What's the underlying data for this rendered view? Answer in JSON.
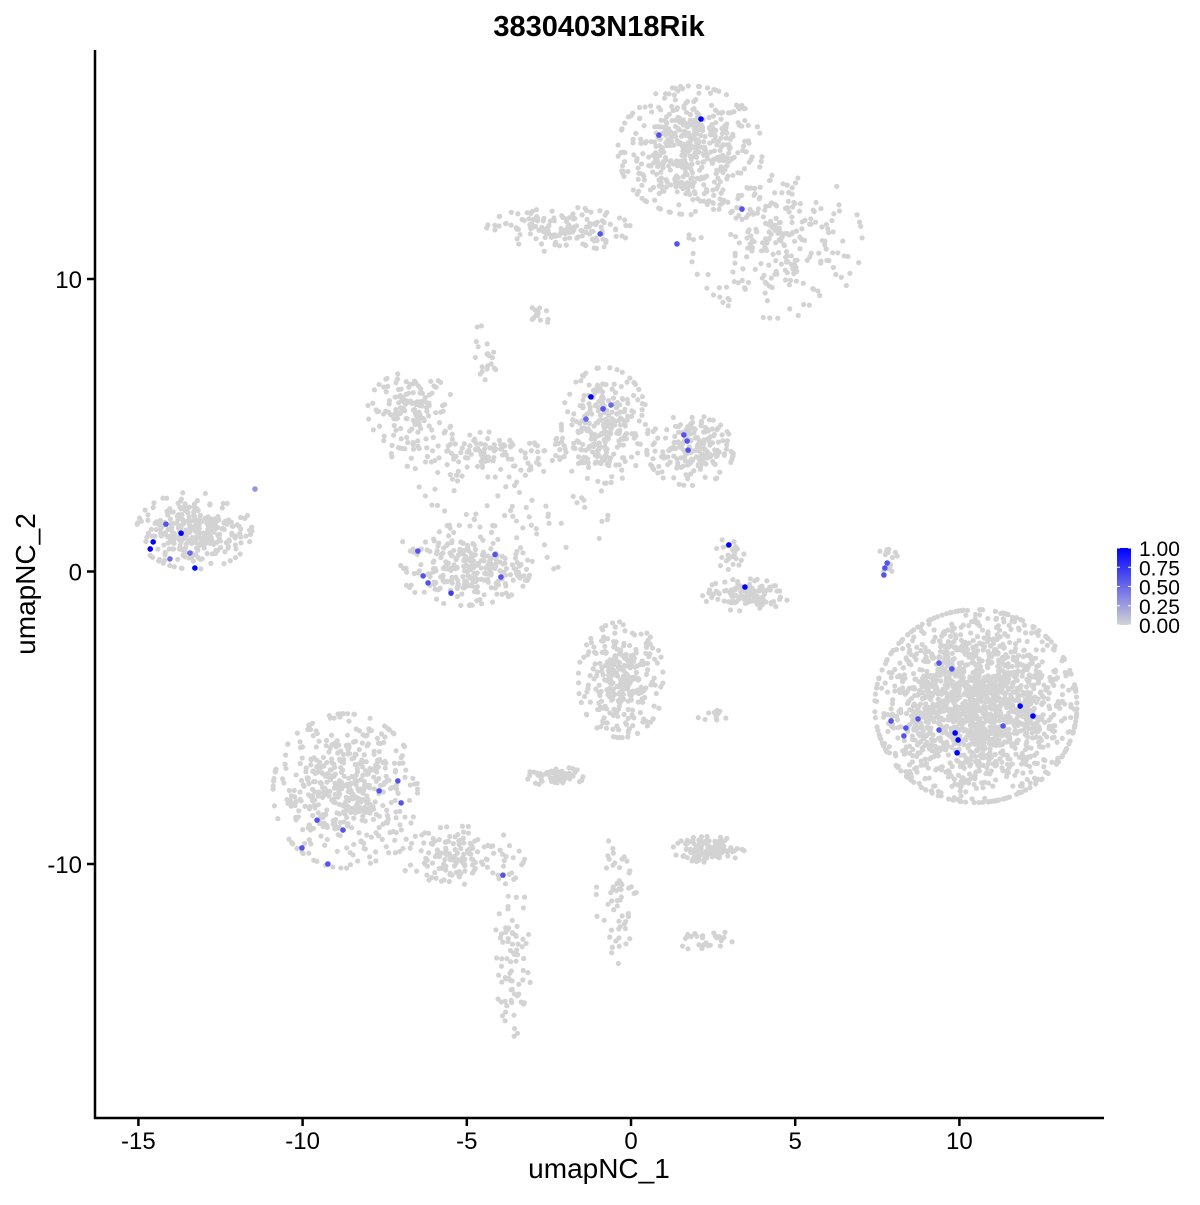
{
  "chart_data": {
    "type": "scatter",
    "title": "3830403N18Rik",
    "xlabel": "umapNC_1",
    "ylabel": "umapNC_2",
    "xlim": [
      -16.4,
      14.2
    ],
    "ylim": [
      -18.5,
      17.6
    ],
    "x_ticks": [
      -15,
      -10,
      -5,
      0,
      5,
      10
    ],
    "x_tick_labels": [
      "-15",
      "-10",
      "-5",
      "0",
      "5",
      "10"
    ],
    "y_ticks": [
      -10,
      0,
      10
    ],
    "y_tick_labels": [
      "-10",
      "0",
      "10"
    ],
    "grid": false,
    "color_scale": {
      "low": "#D3D3D3",
      "high": "#0000FF",
      "range": [
        0,
        1
      ],
      "ticks": [
        1.0,
        0.75,
        0.5,
        0.25,
        0.0
      ],
      "tick_labels": [
        "1.00",
        "0.75",
        "0.50",
        "0.25",
        "0.00"
      ],
      "legend_position": "right"
    },
    "unexpressed_regions_value": 0,
    "unexpressed_regions": [
      {
        "center": [
          1.8,
          14.4
        ],
        "sd": [
          1.0,
          1.0
        ],
        "n": 500
      },
      {
        "center": [
          4.4,
          11.3
        ],
        "sd": [
          1.2,
          1.2
        ],
        "n": 250
      },
      {
        "center": [
          -2.2,
          11.7
        ],
        "sd": [
          1.0,
          0.35
        ],
        "n": 150
      },
      {
        "center": [
          -2.8,
          8.8
        ],
        "sd": [
          0.2,
          0.2
        ],
        "n": 15
      },
      {
        "center": [
          -6.7,
          5.5
        ],
        "sd": [
          0.6,
          0.6
        ],
        "n": 150
      },
      {
        "center": [
          -4.0,
          4.0
        ],
        "sd": [
          1.5,
          0.35
        ],
        "n": 150
      },
      {
        "center": [
          -0.8,
          5.0
        ],
        "sd": [
          0.6,
          0.9
        ],
        "n": 250
      },
      {
        "center": [
          1.8,
          4.15
        ],
        "sd": [
          0.6,
          0.55
        ],
        "n": 200
      },
      {
        "center": [
          -13.3,
          1.4
        ],
        "sd": [
          0.8,
          0.6
        ],
        "n": 300
      },
      {
        "center": [
          -5.05,
          0.05
        ],
        "sd": [
          0.9,
          0.55
        ],
        "n": 250
      },
      {
        "center": [
          3.5,
          -0.8
        ],
        "sd": [
          0.6,
          0.25
        ],
        "n": 120
      },
      {
        "center": [
          10.5,
          -4.6
        ],
        "sd": [
          1.4,
          1.5
        ],
        "n": 1800
      },
      {
        "center": [
          -0.3,
          -3.7
        ],
        "sd": [
          0.6,
          0.9
        ],
        "n": 300
      },
      {
        "center": [
          -8.7,
          -7.5
        ],
        "sd": [
          1.0,
          1.2
        ],
        "n": 500
      },
      {
        "center": [
          -5.2,
          -9.7
        ],
        "sd": [
          0.9,
          0.45
        ],
        "n": 150
      },
      {
        "center": [
          -3.6,
          -13.3
        ],
        "sd": [
          0.25,
          1.3
        ],
        "n": 80
      },
      {
        "center": [
          2.35,
          -9.5
        ],
        "sd": [
          0.5,
          0.2
        ],
        "n": 120
      },
      {
        "center": [
          -2.3,
          -7.0
        ],
        "sd": [
          0.4,
          0.15
        ],
        "n": 60
      },
      {
        "center": [
          -0.4,
          -11.2
        ],
        "sd": [
          0.3,
          1.0
        ],
        "n": 60
      },
      {
        "center": [
          -4.0,
          2.0
        ],
        "sd": [
          1.5,
          1.0
        ],
        "n": 80
      },
      {
        "center": [
          3.0,
          0.6
        ],
        "sd": [
          0.2,
          0.3
        ],
        "n": 25
      },
      {
        "center": [
          7.8,
          0.3
        ],
        "sd": [
          0.15,
          0.4
        ],
        "n": 15
      },
      {
        "center": [
          -4.5,
          7.3
        ],
        "sd": [
          0.3,
          0.5
        ],
        "n": 20
      },
      {
        "center": [
          2.5,
          -4.9
        ],
        "sd": [
          0.3,
          0.1
        ],
        "n": 12
      },
      {
        "center": [
          2.3,
          -12.6
        ],
        "sd": [
          0.4,
          0.2
        ],
        "n": 25
      }
    ],
    "expressed_points": [
      {
        "x": 2.13,
        "y": 15.47,
        "value": 1.0
      },
      {
        "x": 0.85,
        "y": 14.92,
        "value": 0.6
      },
      {
        "x": 3.38,
        "y": 12.39,
        "value": 0.6
      },
      {
        "x": -0.94,
        "y": 11.54,
        "value": 0.6
      },
      {
        "x": 1.4,
        "y": 11.2,
        "value": 0.6
      },
      {
        "x": -1.22,
        "y": 5.97,
        "value": 1.0
      },
      {
        "x": -0.85,
        "y": 5.56,
        "value": 0.6
      },
      {
        "x": -0.61,
        "y": 5.69,
        "value": 0.5
      },
      {
        "x": -1.37,
        "y": 5.21,
        "value": 0.5
      },
      {
        "x": 1.61,
        "y": 4.67,
        "value": 0.6
      },
      {
        "x": 1.71,
        "y": 4.46,
        "value": 0.6
      },
      {
        "x": 1.74,
        "y": 4.15,
        "value": 0.6
      },
      {
        "x": -11.45,
        "y": 2.82,
        "value": 0.3
      },
      {
        "x": -14.16,
        "y": 1.62,
        "value": 0.6
      },
      {
        "x": -14.55,
        "y": 1.01,
        "value": 1.0
      },
      {
        "x": -14.64,
        "y": 0.77,
        "value": 1.0
      },
      {
        "x": -13.7,
        "y": 1.31,
        "value": 1.0
      },
      {
        "x": -13.43,
        "y": 0.63,
        "value": 0.5
      },
      {
        "x": -13.28,
        "y": 0.12,
        "value": 1.0
      },
      {
        "x": -14.04,
        "y": 0.43,
        "value": 0.5
      },
      {
        "x": -6.49,
        "y": 0.7,
        "value": 0.6
      },
      {
        "x": -6.33,
        "y": -0.15,
        "value": 0.6
      },
      {
        "x": -6.18,
        "y": -0.39,
        "value": 0.6
      },
      {
        "x": -5.48,
        "y": -0.74,
        "value": 0.7
      },
      {
        "x": -4.14,
        "y": 0.58,
        "value": 0.6
      },
      {
        "x": -3.96,
        "y": -0.19,
        "value": 0.6
      },
      {
        "x": 2.98,
        "y": 0.91,
        "value": 1.0
      },
      {
        "x": 3.47,
        "y": -0.53,
        "value": 1.0
      },
      {
        "x": 7.8,
        "y": 0.29,
        "value": 0.6
      },
      {
        "x": 7.73,
        "y": 0.12,
        "value": 0.6
      },
      {
        "x": 7.7,
        "y": -0.12,
        "value": 0.6
      },
      {
        "x": 9.38,
        "y": -3.13,
        "value": 0.6
      },
      {
        "x": 9.77,
        "y": -3.33,
        "value": 0.6
      },
      {
        "x": 7.92,
        "y": -5.11,
        "value": 0.6
      },
      {
        "x": 8.37,
        "y": -5.35,
        "value": 0.6
      },
      {
        "x": 8.31,
        "y": -5.62,
        "value": 0.6
      },
      {
        "x": 8.74,
        "y": -5.04,
        "value": 0.6
      },
      {
        "x": 9.38,
        "y": -5.42,
        "value": 0.6
      },
      {
        "x": 9.87,
        "y": -5.52,
        "value": 1.0
      },
      {
        "x": 9.96,
        "y": -5.76,
        "value": 1.0
      },
      {
        "x": 9.93,
        "y": -6.2,
        "value": 1.0
      },
      {
        "x": 11.33,
        "y": -5.28,
        "value": 0.6
      },
      {
        "x": 11.85,
        "y": -4.6,
        "value": 1.0
      },
      {
        "x": 12.24,
        "y": -4.94,
        "value": 1.0
      },
      {
        "x": -7.67,
        "y": -7.5,
        "value": 0.6
      },
      {
        "x": -7.1,
        "y": -7.16,
        "value": 0.6
      },
      {
        "x": -7.0,
        "y": -7.91,
        "value": 0.6
      },
      {
        "x": -9.56,
        "y": -8.5,
        "value": 0.6
      },
      {
        "x": -10.02,
        "y": -9.45,
        "value": 0.6
      },
      {
        "x": -8.77,
        "y": -8.84,
        "value": 0.6
      },
      {
        "x": -9.23,
        "y": -10.0,
        "value": 0.6
      },
      {
        "x": -3.9,
        "y": -10.38,
        "value": 0.6
      }
    ]
  }
}
